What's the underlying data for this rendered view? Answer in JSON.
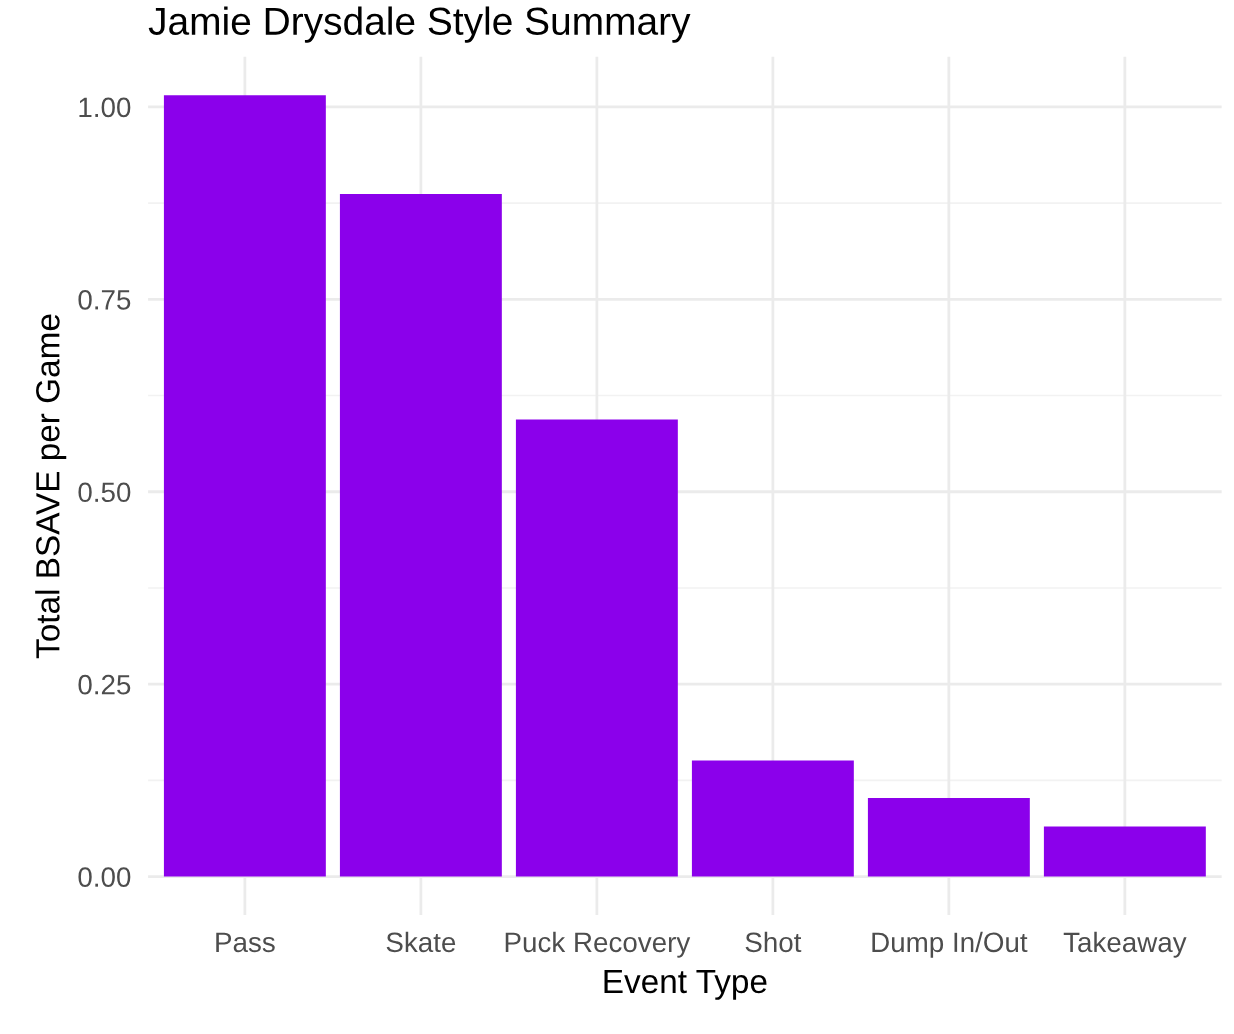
{
  "chart_data": {
    "type": "bar",
    "title": "Jamie Drysdale Style Summary",
    "xlabel": "Event Type",
    "ylabel": "Total BSAVE per Game",
    "categories": [
      "Pass",
      "Skate",
      "Puck Recovery",
      "Shot",
      "Dump In/Out",
      "Takeaway"
    ],
    "values": [
      1.015,
      0.887,
      0.594,
      0.151,
      0.102,
      0.065
    ],
    "color": "#8b00eb",
    "ylim": [
      -0.05,
      1.065
    ],
    "yticks": [
      {
        "value": 0,
        "label": "0.00"
      },
      {
        "value": 0.25,
        "label": "0.25"
      },
      {
        "value": 0.5,
        "label": "0.50"
      },
      {
        "value": 0.75,
        "label": "0.75"
      },
      {
        "value": 1,
        "label": "1.00"
      }
    ],
    "grid": true,
    "legend": false
  }
}
